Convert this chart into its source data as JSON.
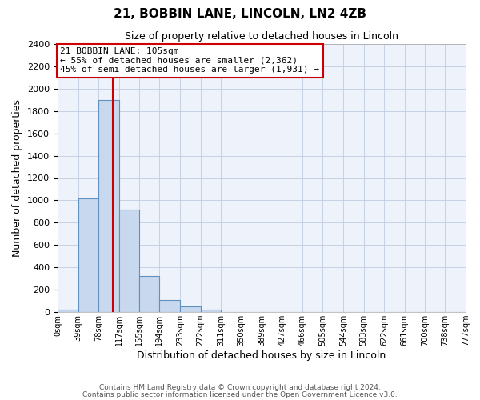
{
  "title": "21, BOBBIN LANE, LINCOLN, LN2 4ZB",
  "subtitle": "Size of property relative to detached houses in Lincoln",
  "xlabel": "Distribution of detached houses by size in Lincoln",
  "ylabel": "Number of detached properties",
  "bin_edges": [
    0,
    39,
    78,
    117,
    155,
    194,
    233,
    272,
    311,
    350,
    389,
    427,
    466,
    505,
    544,
    583,
    622,
    661,
    700,
    738,
    777
  ],
  "bin_labels": [
    "0sqm",
    "39sqm",
    "78sqm",
    "117sqm",
    "155sqm",
    "194sqm",
    "233sqm",
    "272sqm",
    "311sqm",
    "350sqm",
    "389sqm",
    "427sqm",
    "466sqm",
    "505sqm",
    "544sqm",
    "583sqm",
    "622sqm",
    "661sqm",
    "700sqm",
    "738sqm",
    "777sqm"
  ],
  "bar_heights": [
    20,
    1020,
    1900,
    920,
    320,
    105,
    50,
    25,
    0,
    0,
    0,
    0,
    0,
    0,
    0,
    0,
    0,
    0,
    0,
    0
  ],
  "bar_color": "#c8d8ee",
  "bar_edge_color": "#6090c0",
  "vline_x": 105,
  "vline_color": "#cc0000",
  "ylim": [
    0,
    2400
  ],
  "yticks": [
    0,
    200,
    400,
    600,
    800,
    1000,
    1200,
    1400,
    1600,
    1800,
    2000,
    2200,
    2400
  ],
  "annotation_title": "21 BOBBIN LANE: 105sqm",
  "annotation_line1": "← 55% of detached houses are smaller (2,362)",
  "annotation_line2": "45% of semi-detached houses are larger (1,931) →",
  "annotation_box_color": "#ffffff",
  "annotation_box_edge_color": "#cc0000",
  "footer_line1": "Contains HM Land Registry data © Crown copyright and database right 2024.",
  "footer_line2": "Contains public sector information licensed under the Open Government Licence v3.0.",
  "bg_color": "#ffffff",
  "plot_bg_color": "#eef2fa",
  "grid_color": "#c0cce0"
}
